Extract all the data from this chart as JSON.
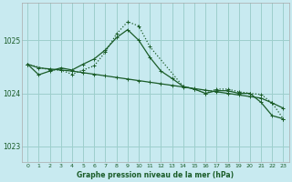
{
  "title": "Graphe pression niveau de la mer (hPa)",
  "background_color": "#c8eaf0",
  "grid_color": "#9dcfcc",
  "line_color": "#1a5c28",
  "xlim": [
    -0.5,
    23.5
  ],
  "ylim": [
    1022.7,
    1025.7
  ],
  "yticks": [
    1023,
    1024,
    1025
  ],
  "xticks": [
    0,
    1,
    2,
    3,
    4,
    5,
    6,
    7,
    8,
    9,
    10,
    11,
    12,
    13,
    14,
    15,
    16,
    17,
    18,
    19,
    20,
    21,
    22,
    23
  ],
  "line1_x": [
    0,
    1,
    2,
    3,
    4,
    5,
    6,
    7,
    8,
    9,
    10,
    11,
    12,
    13,
    14,
    15,
    16,
    17,
    18,
    19,
    20,
    21,
    22,
    23
  ],
  "line1_y": [
    1024.55,
    1024.48,
    1024.46,
    1024.44,
    1024.42,
    1024.39,
    1024.36,
    1024.33,
    1024.3,
    1024.27,
    1024.24,
    1024.21,
    1024.18,
    1024.15,
    1024.12,
    1024.09,
    1024.06,
    1024.03,
    1024.0,
    1023.97,
    1023.94,
    1023.91,
    1023.82,
    1023.72
  ],
  "line2_x": [
    0,
    1,
    2,
    3,
    4,
    5,
    6,
    7,
    8,
    9,
    10,
    11,
    12,
    13,
    14,
    15,
    16,
    17,
    18,
    19,
    20,
    21,
    22,
    23
  ],
  "line2_y": [
    1024.55,
    1024.35,
    1024.42,
    1024.48,
    1024.44,
    1024.55,
    1024.65,
    1024.82,
    1025.05,
    1025.2,
    1025.0,
    1024.68,
    1024.42,
    1024.28,
    1024.13,
    1024.08,
    1024.0,
    1024.05,
    1024.05,
    1024.0,
    1024.0,
    1023.83,
    1023.58,
    1023.52
  ],
  "line3_x": [
    0,
    2,
    3,
    4,
    5,
    6,
    7,
    8,
    9,
    10,
    11,
    14,
    15,
    16,
    17,
    18,
    19,
    20,
    21,
    22,
    23
  ],
  "line3_y": [
    1024.55,
    1024.44,
    1024.44,
    1024.36,
    1024.44,
    1024.52,
    1024.78,
    1025.12,
    1025.35,
    1025.27,
    1024.88,
    1024.13,
    1024.08,
    1024.0,
    1024.08,
    1024.08,
    1024.03,
    1024.0,
    1023.98,
    1023.82,
    1023.52
  ]
}
